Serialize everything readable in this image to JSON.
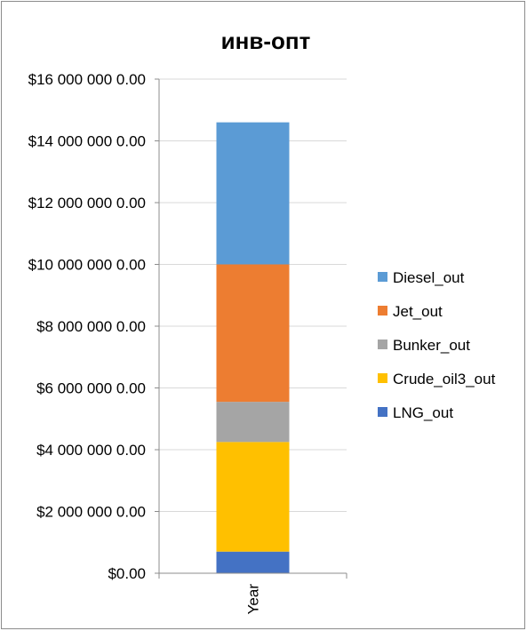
{
  "chart_data": {
    "type": "bar",
    "stacked": true,
    "title": "инв-опт",
    "categories": [
      "Year"
    ],
    "series": [
      {
        "name": "LNG_out",
        "values": [
          700000
        ],
        "color": "#4472C4"
      },
      {
        "name": "Crude_oil3_out",
        "values": [
          3550000
        ],
        "color": "#FFC000"
      },
      {
        "name": "Bunker_out",
        "values": [
          1300000
        ],
        "color": "#A5A5A5"
      },
      {
        "name": "Jet_out",
        "values": [
          4450000
        ],
        "color": "#ED7D31"
      },
      {
        "name": "Diesel_out",
        "values": [
          4600000
        ],
        "color": "#5B9BD5"
      }
    ],
    "legend_order": [
      "Diesel_out",
      "Jet_out",
      "Bunker_out",
      "Crude_oil3_out",
      "LNG_out"
    ],
    "ylim": [
      0,
      16000000
    ],
    "yticks": [
      0,
      2000000,
      4000000,
      6000000,
      8000000,
      10000000,
      12000000,
      14000000,
      16000000
    ],
    "ytick_labels": [
      "$0.00",
      "$2 000 000 0.00",
      "$4 000 000 0.00",
      "$6 000 000 0.00",
      "$8 000 000 0.00",
      "$10 000 000 0.00",
      "$12 000 000 0.00",
      "$14 000 000 0.00",
      "$16 000 000 0.00"
    ],
    "grid": true,
    "legend_position": "right",
    "gridline_color": "#D9D9D9"
  }
}
